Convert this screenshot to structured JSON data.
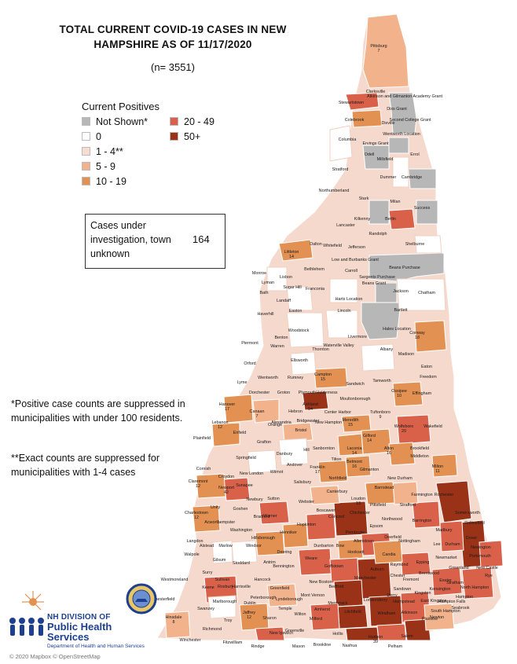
{
  "title_line1": "TOTAL CURRENT COVID-19 CASES IN NEW",
  "title_line2": "HAMPSHIRE AS OF 11/17/2020",
  "subtitle": "(n= 3551)",
  "legend": {
    "title": "Current Positives",
    "items": [
      {
        "label": "Not Shown*",
        "color": "#b7b7b7"
      },
      {
        "label": "20 - 49",
        "color": "#d9614a"
      },
      {
        "label": "0",
        "color": "#ffffff"
      },
      {
        "label": "50+",
        "color": "#9a3218"
      },
      {
        "label": "1 - 4**",
        "color": "#f7dcd2"
      },
      {
        "label": "",
        "color": ""
      },
      {
        "label": "5 - 9",
        "color": "#f2b38c"
      },
      {
        "label": "",
        "color": ""
      },
      {
        "label": "10 - 19",
        "color": "#e39152"
      },
      {
        "label": "",
        "color": ""
      }
    ]
  },
  "investigation_box": {
    "label": "Cases under investigation, town unknown",
    "value": "164"
  },
  "note1": "*Positive case counts are suppressed in municipalities with under 100 residents.",
  "note2": "**Exact counts are suppressed for municipalities with 1-4 cases",
  "logo": {
    "line1": "NH DIVISION OF",
    "line2": "Public Health Services",
    "line3": "Department of Health and Human Services"
  },
  "credit": "© 2020 Mapbox © OpenStreetMap",
  "colors": {
    "not_shown": "#b7b7b7",
    "zero": "#ffffff",
    "c1_4": "#f7dcd2",
    "c5_9": "#f2b38c",
    "c10_19": "#e39152",
    "c20_49": "#d9614a",
    "c50": "#9a3218"
  },
  "towns": [
    {
      "name": "Pittsburg",
      "count": "7"
    },
    {
      "name": "Clarksville",
      "count": ""
    },
    {
      "name": "Atkinson and Gilmanton Academy Grant",
      "count": ""
    },
    {
      "name": "Stewartstown",
      "count": ""
    },
    {
      "name": "Dixs Grant",
      "count": ""
    },
    {
      "name": "Colebrook",
      "count": ""
    },
    {
      "name": "Dixville",
      "count": ""
    },
    {
      "name": "Second College Grant",
      "count": ""
    },
    {
      "name": "Wentworth Location",
      "count": ""
    },
    {
      "name": "Columbia",
      "count": ""
    },
    {
      "name": "Ervings Grant",
      "count": ""
    },
    {
      "name": "Odell",
      "count": ""
    },
    {
      "name": "Errol",
      "count": ""
    },
    {
      "name": "Millsfield",
      "count": ""
    },
    {
      "name": "Stratford",
      "count": ""
    },
    {
      "name": "Dummer",
      "count": ""
    },
    {
      "name": "Cambridge",
      "count": ""
    },
    {
      "name": "Northumberland",
      "count": ""
    },
    {
      "name": "Stark",
      "count": ""
    },
    {
      "name": "Milan",
      "count": ""
    },
    {
      "name": "Success",
      "count": ""
    },
    {
      "name": "Kilkenny",
      "count": ""
    },
    {
      "name": "Lancaster",
      "count": ""
    },
    {
      "name": "Berlin",
      "count": ""
    },
    {
      "name": "Randolph",
      "count": ""
    },
    {
      "name": "Shelburne",
      "count": ""
    },
    {
      "name": "Dalton",
      "count": ""
    },
    {
      "name": "Whitefield",
      "count": ""
    },
    {
      "name": "Jefferson",
      "count": ""
    },
    {
      "name": "Littleton",
      "count": "14"
    },
    {
      "name": "Low and Burbanks Grant",
      "count": ""
    },
    {
      "name": "Bethlehem",
      "count": ""
    },
    {
      "name": "Carroll",
      "count": ""
    },
    {
      "name": "Beans Purchase",
      "count": ""
    },
    {
      "name": "Monroe",
      "count": ""
    },
    {
      "name": "Lisbon",
      "count": ""
    },
    {
      "name": "Sargents Purchase",
      "count": ""
    },
    {
      "name": "Beans Grant",
      "count": ""
    },
    {
      "name": "Lyman",
      "count": ""
    },
    {
      "name": "Sugar Hill",
      "count": ""
    },
    {
      "name": "Franconia",
      "count": ""
    },
    {
      "name": "Jackson",
      "count": ""
    },
    {
      "name": "Chatham",
      "count": ""
    },
    {
      "name": "Bath",
      "count": ""
    },
    {
      "name": "Landaff",
      "count": ""
    },
    {
      "name": "Harts Location",
      "count": ""
    },
    {
      "name": "Easton",
      "count": ""
    },
    {
      "name": "Lincoln",
      "count": ""
    },
    {
      "name": "Bartlett",
      "count": ""
    },
    {
      "name": "Haverhill",
      "count": ""
    },
    {
      "name": "Woodstock",
      "count": ""
    },
    {
      "name": "Hales Location",
      "count": ""
    },
    {
      "name": "Conway",
      "count": "18"
    },
    {
      "name": "Benton",
      "count": ""
    },
    {
      "name": "Livermore",
      "count": ""
    },
    {
      "name": "Piermont",
      "count": ""
    },
    {
      "name": "Warren",
      "count": ""
    },
    {
      "name": "Thornton",
      "count": ""
    },
    {
      "name": "Waterville Valley",
      "count": ""
    },
    {
      "name": "Albany",
      "count": ""
    },
    {
      "name": "Madison",
      "count": ""
    },
    {
      "name": "Ellsworth",
      "count": ""
    },
    {
      "name": "Orford",
      "count": ""
    },
    {
      "name": "Eaton",
      "count": ""
    },
    {
      "name": "Wentworth",
      "count": ""
    },
    {
      "name": "Rumney",
      "count": ""
    },
    {
      "name": "Campton",
      "count": "15"
    },
    {
      "name": "Freedom",
      "count": ""
    },
    {
      "name": "Lyme",
      "count": ""
    },
    {
      "name": "Sandwich",
      "count": ""
    },
    {
      "name": "Tamworth",
      "count": ""
    },
    {
      "name": "Dorchester",
      "count": ""
    },
    {
      "name": "Groton",
      "count": ""
    },
    {
      "name": "Plymouth",
      "count": ""
    },
    {
      "name": "Holderness",
      "count": ""
    },
    {
      "name": "Ossipee",
      "count": "10"
    },
    {
      "name": "Effingham",
      "count": ""
    },
    {
      "name": "Hanover",
      "count": "17"
    },
    {
      "name": "Canaan",
      "count": "7"
    },
    {
      "name": "Ashland",
      "count": "54"
    },
    {
      "name": "Moultonborough",
      "count": ""
    },
    {
      "name": "Hebron",
      "count": ""
    },
    {
      "name": "Center Harbor",
      "count": ""
    },
    {
      "name": "Tuftonboro",
      "count": "9"
    },
    {
      "name": "Lebanon",
      "count": "12"
    },
    {
      "name": "Orange",
      "count": ""
    },
    {
      "name": "Alexandria",
      "count": ""
    },
    {
      "name": "Bridgewater",
      "count": ""
    },
    {
      "name": "New Hampton",
      "count": ""
    },
    {
      "name": "Meredith",
      "count": "15"
    },
    {
      "name": "Wolfeboro",
      "count": "20"
    },
    {
      "name": "Wakefield",
      "count": ""
    },
    {
      "name": "Enfield",
      "count": ""
    },
    {
      "name": "Bristol",
      "count": ""
    },
    {
      "name": "Gilford",
      "count": "14"
    },
    {
      "name": "Plainfield",
      "count": ""
    },
    {
      "name": "Grafton",
      "count": ""
    },
    {
      "name": "Sanbornton",
      "count": ""
    },
    {
      "name": "Laconia",
      "count": "14"
    },
    {
      "name": "Alton",
      "count": "16"
    },
    {
      "name": "Brookfield",
      "count": ""
    },
    {
      "name": "Hill",
      "count": ""
    },
    {
      "name": "Tilton",
      "count": ""
    },
    {
      "name": "Belmont",
      "count": "16"
    },
    {
      "name": "Middleton",
      "count": ""
    },
    {
      "name": "Springfield",
      "count": ""
    },
    {
      "name": "Danbury",
      "count": ""
    },
    {
      "name": "Cornish",
      "count": ""
    },
    {
      "name": "Andover",
      "count": ""
    },
    {
      "name": "Franklin",
      "count": "17"
    },
    {
      "name": "Gilmanton",
      "count": ""
    },
    {
      "name": "Milton",
      "count": "11"
    },
    {
      "name": "New London",
      "count": ""
    },
    {
      "name": "Wilmot",
      "count": ""
    },
    {
      "name": "Northfield",
      "count": ""
    },
    {
      "name": "New Durham",
      "count": ""
    },
    {
      "name": "Croydon",
      "count": ""
    },
    {
      "name": "Salisbury",
      "count": ""
    },
    {
      "name": "Claremont",
      "count": "12"
    },
    {
      "name": "Newport",
      "count": "42"
    },
    {
      "name": "Sunapee",
      "count": ""
    },
    {
      "name": "Barnstead",
      "count": ""
    },
    {
      "name": "Farmington",
      "count": ""
    },
    {
      "name": "Canterbury",
      "count": ""
    },
    {
      "name": "Rochester",
      "count": ""
    },
    {
      "name": "Newbury",
      "count": ""
    },
    {
      "name": "Sutton",
      "count": ""
    },
    {
      "name": "Webster",
      "count": ""
    },
    {
      "name": "Loudon",
      "count": "13"
    },
    {
      "name": "Pittsfield",
      "count": ""
    },
    {
      "name": "Strafford",
      "count": ""
    },
    {
      "name": "Somersworth",
      "count": ""
    },
    {
      "name": "Unity",
      "count": ""
    },
    {
      "name": "Goshen",
      "count": ""
    },
    {
      "name": "Boscawen",
      "count": ""
    },
    {
      "name": "Chichester",
      "count": ""
    },
    {
      "name": "Charlestown",
      "count": "12"
    },
    {
      "name": "Warner",
      "count": ""
    },
    {
      "name": "Concord",
      "count": ""
    },
    {
      "name": "Northwood",
      "count": ""
    },
    {
      "name": "Barrington",
      "count": ""
    },
    {
      "name": "Rollinsford",
      "count": ""
    },
    {
      "name": "Lempster",
      "count": ""
    },
    {
      "name": "Acworth",
      "count": ""
    },
    {
      "name": "Bradford",
      "count": ""
    },
    {
      "name": "Hopkinton",
      "count": ""
    },
    {
      "name": "Epsom",
      "count": ""
    },
    {
      "name": "Madbury",
      "count": ""
    },
    {
      "name": "Dover",
      "count": ""
    },
    {
      "name": "Washington",
      "count": ""
    },
    {
      "name": "Henniker",
      "count": ""
    },
    {
      "name": "Pembroke",
      "count": ""
    },
    {
      "name": "Deerfield",
      "count": ""
    },
    {
      "name": "Nottingham",
      "count": ""
    },
    {
      "name": "Lee",
      "count": ""
    },
    {
      "name": "Durham",
      "count": ""
    },
    {
      "name": "Newington",
      "count": ""
    },
    {
      "name": "Langdon",
      "count": ""
    },
    {
      "name": "Allenstown",
      "count": ""
    },
    {
      "name": "Hillsborough",
      "count": ""
    },
    {
      "name": "Portsmouth",
      "count": ""
    },
    {
      "name": "Alstead",
      "count": ""
    },
    {
      "name": "Marlow",
      "count": ""
    },
    {
      "name": "Windsor",
      "count": ""
    },
    {
      "name": "Dunbarton",
      "count": ""
    },
    {
      "name": "Bow",
      "count": ""
    },
    {
      "name": "Candia",
      "count": ""
    },
    {
      "name": "Newmarket",
      "count": ""
    },
    {
      "name": "Walpole",
      "count": ""
    },
    {
      "name": "Gilsum",
      "count": ""
    },
    {
      "name": "Stoddard",
      "count": ""
    },
    {
      "name": "Deering",
      "count": ""
    },
    {
      "name": "Hooksett",
      "count": ""
    },
    {
      "name": "Raymond",
      "count": ""
    },
    {
      "name": "Epping",
      "count": ""
    },
    {
      "name": "Greenland",
      "count": ""
    },
    {
      "name": "New Castle",
      "count": ""
    },
    {
      "name": "Rye",
      "count": ""
    },
    {
      "name": "Antrim",
      "count": ""
    },
    {
      "name": "Weare",
      "count": ""
    },
    {
      "name": "Goffstown",
      "count": ""
    },
    {
      "name": "Auburn",
      "count": ""
    },
    {
      "name": "Fremont",
      "count": ""
    },
    {
      "name": "Exeter",
      "count": ""
    },
    {
      "name": "Surry",
      "count": ""
    },
    {
      "name": "Bennington",
      "count": ""
    },
    {
      "name": "Manchester",
      "count": ""
    },
    {
      "name": "Chester",
      "count": ""
    },
    {
      "name": "Brentwood",
      "count": ""
    },
    {
      "name": "Stratham",
      "count": ""
    },
    {
      "name": "Westmoreland",
      "count": ""
    },
    {
      "name": "Sullivan",
      "count": ""
    },
    {
      "name": "Hancock",
      "count": ""
    },
    {
      "name": "New Boston",
      "count": ""
    },
    {
      "name": "Kensington",
      "count": ""
    },
    {
      "name": "North Hampton",
      "count": ""
    },
    {
      "name": "Keene",
      "count": ""
    },
    {
      "name": "Roxbury",
      "count": ""
    },
    {
      "name": "Harrisville",
      "count": ""
    },
    {
      "name": "Greenfield",
      "count": ""
    },
    {
      "name": "Bedford",
      "count": ""
    },
    {
      "name": "Sandown",
      "count": ""
    },
    {
      "name": "Kingston",
      "count": ""
    },
    {
      "name": "Hampton",
      "count": ""
    },
    {
      "name": "Chesterfield",
      "count": ""
    },
    {
      "name": "Marlborough",
      "count": ""
    },
    {
      "name": "Dublin",
      "count": ""
    },
    {
      "name": "Peterborough",
      "count": ""
    },
    {
      "name": "Lyndeborough",
      "count": ""
    },
    {
      "name": "Mont Vernon",
      "count": ""
    },
    {
      "name": "Merrimack",
      "count": ""
    },
    {
      "name": "Londonderry",
      "count": ""
    },
    {
      "name": "Derry",
      "count": ""
    },
    {
      "name": "Hampstead",
      "count": ""
    },
    {
      "name": "East Kingston",
      "count": ""
    },
    {
      "name": "Hampton Falls",
      "count": ""
    },
    {
      "name": "Seabrook",
      "count": ""
    },
    {
      "name": "Swanzey",
      "count": ""
    },
    {
      "name": "Jaffrey",
      "count": "12"
    },
    {
      "name": "Temple",
      "count": ""
    },
    {
      "name": "Wilton",
      "count": ""
    },
    {
      "name": "Amherst",
      "count": ""
    },
    {
      "name": "Litchfield",
      "count": ""
    },
    {
      "name": "Windham",
      "count": ""
    },
    {
      "name": "Atkinson",
      "count": ""
    },
    {
      "name": "Plaistow",
      "count": ""
    },
    {
      "name": "Newton",
      "count": ""
    },
    {
      "name": "South Hampton",
      "count": ""
    },
    {
      "name": "Hinsdale",
      "count": "8"
    },
    {
      "name": "Troy",
      "count": ""
    },
    {
      "name": "Sharon",
      "count": ""
    },
    {
      "name": "Milford",
      "count": ""
    },
    {
      "name": "Hollis",
      "count": ""
    },
    {
      "name": "Hudson",
      "count": "39"
    },
    {
      "name": "Salem",
      "count": ""
    },
    {
      "name": "Richmond",
      "count": ""
    },
    {
      "name": "Fitzwilliam",
      "count": ""
    },
    {
      "name": "Rindge",
      "count": ""
    },
    {
      "name": "New Ipswich",
      "count": ""
    },
    {
      "name": "Greenville",
      "count": ""
    },
    {
      "name": "Brookline",
      "count": ""
    },
    {
      "name": "Nashua",
      "count": ""
    },
    {
      "name": "Pelham",
      "count": ""
    },
    {
      "name": "Winchester",
      "count": ""
    },
    {
      "name": "Mason",
      "count": ""
    }
  ]
}
